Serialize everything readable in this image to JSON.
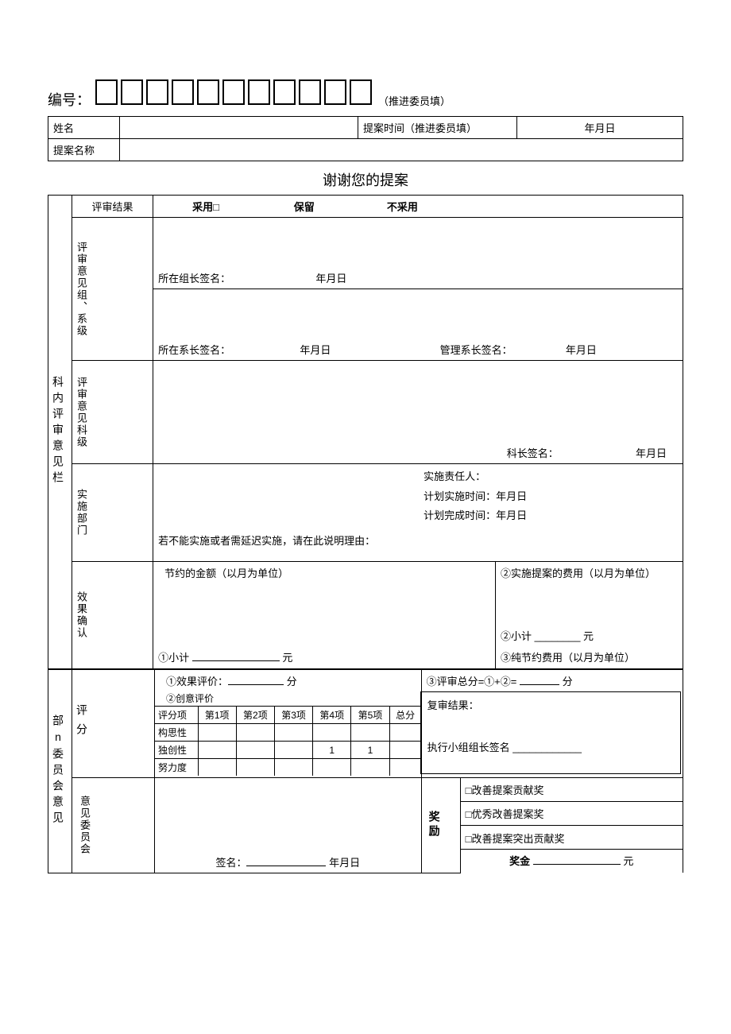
{
  "serial": {
    "label": "编号：",
    "box_count": 11,
    "note": "（推进委员填）"
  },
  "headerTable": {
    "name_label": "姓名",
    "time_label": "提案时间（推进委员填）",
    "date_ph": "年月日",
    "proposal_name_label": "提案名称"
  },
  "thanks": "谢谢您的提案",
  "section1": {
    "title": "科内评审意见栏",
    "result_label": "评审结果",
    "opt_adopt": "采用□",
    "opt_keep": "保留",
    "opt_reject": "不采用",
    "group_level": "评审意见组、系级",
    "group_sign": "所在组长签名：",
    "dept_sign": "所在系长签名：",
    "mgr_sign": "管理系长签名：",
    "date_ph": "年月日",
    "section_level": "评审意见科级",
    "section_sign": "科长签名：",
    "impl_dept": "实施部门",
    "impl_person": "实施责任人：",
    "impl_plan_time": "计划实施时间：年月日",
    "impl_done_time": "计划完成时间：年月日",
    "impl_reason": "若不能实施或者需延迟实施，请在此说明理由：",
    "effect_confirm": "效果确认",
    "save_amount": "节约的金额（以月为单位）",
    "subtotal1": "①小计",
    "unit_yuan": "元",
    "cost2": "②实施提案的费用（以月为单位）",
    "subtotal2": "②小计 ________ 元",
    "net3": "③纯节约费用（以月为单位）"
  },
  "section2": {
    "title": "部n委员会意见",
    "score_col": "评分",
    "eff_eval": "①效果评价：",
    "idea_eval": "②创意评价",
    "score_unit": "分",
    "total_eval": "③评审总分=①+②=",
    "tbl_header": [
      "评分项",
      "第1项",
      "第2项",
      "第3项",
      "第4项",
      "第5项",
      "总分"
    ],
    "tbl_rows": [
      "构思性",
      "独创性",
      "努力度"
    ],
    "values": {
      "r1c3": "1",
      "r1c4": "1"
    },
    "recheck": "复审结果：",
    "exec_sign": "执行小组组长签名 ____________",
    "committee": "意见委员会",
    "sign_label": "签名：",
    "date_ph": "年月日",
    "award_label": "奖励",
    "award1": "□改善提案贡献奖",
    "award2": "□优秀改善提案奖",
    "award3": "□改善提案突出贡献奖",
    "bonus_label": "奖金",
    "bonus_unit": "元"
  }
}
